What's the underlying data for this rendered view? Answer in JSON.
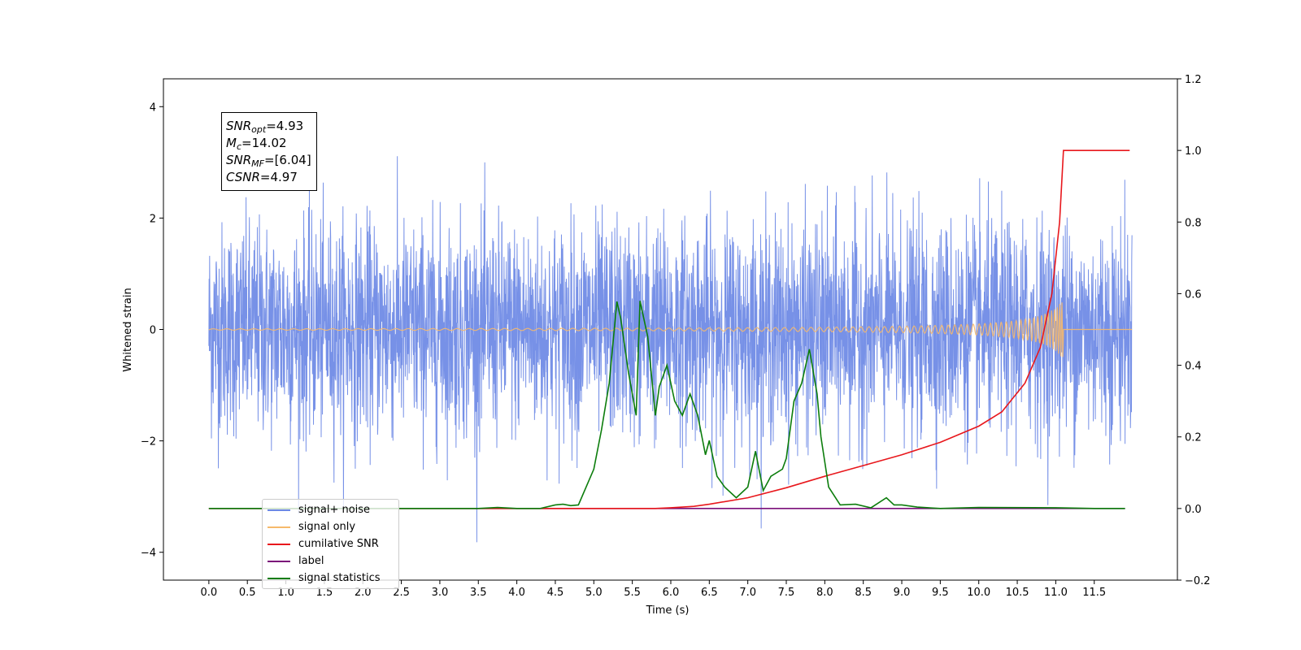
{
  "chart_data": {
    "type": "line",
    "xlabel": "Time (s)",
    "ylabel": "Whitened strain",
    "xticks": [
      "0.0",
      "0.5",
      "1.0",
      "1.5",
      "2.0",
      "2.5",
      "3.0",
      "3.5",
      "4.0",
      "4.5",
      "5.0",
      "5.5",
      "6.0",
      "6.5",
      "7.0",
      "7.5",
      "8.0",
      "8.5",
      "9.0",
      "9.5",
      "10.0",
      "10.5",
      "11.0",
      "11.5"
    ],
    "yticks_left": [
      "4",
      "2",
      "0",
      "−2",
      "−4"
    ],
    "ylim_left": [
      -4.5,
      4.5
    ],
    "yticks_right": [
      "1.2",
      "1.0",
      "0.8",
      "0.6",
      "0.4",
      "0.2",
      "0.0",
      "−0.2"
    ],
    "ylim_right": [
      -0.2,
      1.2
    ],
    "xlim": [
      -0.59,
      12.58
    ],
    "legend_position": "lower-left",
    "annotation": {
      "snr_opt": {
        "base": "SNR",
        "sub": "opt",
        "value": "=4.93"
      },
      "mc": {
        "base": "M",
        "sub": "c",
        "value": "=14.02"
      },
      "snr_mf": {
        "base": "SNR",
        "sub": "MF",
        "value": "=[6.04]"
      },
      "csnr": {
        "base": "CSNR",
        "value": "=4.97"
      }
    },
    "series": [
      {
        "name": "signal+ noise",
        "axis": "left",
        "color": "#6b88e5",
        "description": "whitened noise around 0, amplitude about ±2, peaks to about ±4, from 0 to 12 s"
      },
      {
        "name": "signal only",
        "axis": "left",
        "color": "#f6b96b",
        "description": "chirp near 0 growing to about ±1 at 11.1 s"
      },
      {
        "name": "cumilative SNR",
        "axis": "right",
        "color": "#e8171c",
        "x": [
          0.0,
          5.8,
          6.0,
          6.3,
          6.5,
          7.0,
          7.5,
          8.0,
          8.5,
          9.0,
          9.5,
          10.0,
          10.3,
          10.6,
          10.8,
          10.95,
          11.05,
          11.1,
          11.96
        ],
        "y": [
          0.0,
          0.0,
          0.002,
          0.006,
          0.012,
          0.03,
          0.058,
          0.09,
          0.12,
          0.15,
          0.185,
          0.23,
          0.27,
          0.35,
          0.45,
          0.6,
          0.8,
          1.0,
          1.0
        ]
      },
      {
        "name": "label",
        "axis": "right",
        "color": "#7b0f7a",
        "x": [
          0.0,
          11.9
        ],
        "y": [
          0.0,
          0.0
        ]
      },
      {
        "name": "signal statistics",
        "axis": "right",
        "color": "#0c7d0c",
        "x": [
          0.0,
          3.5,
          3.75,
          4.0,
          4.3,
          4.5,
          4.6,
          4.7,
          4.8,
          4.9,
          5.0,
          5.1,
          5.2,
          5.3,
          5.35,
          5.45,
          5.55,
          5.6,
          5.65,
          5.7,
          5.8,
          5.85,
          5.95,
          6.05,
          6.15,
          6.25,
          6.35,
          6.45,
          6.5,
          6.6,
          6.7,
          6.85,
          7.0,
          7.1,
          7.2,
          7.3,
          7.45,
          7.5,
          7.6,
          7.7,
          7.8,
          7.9,
          7.95,
          8.05,
          8.2,
          8.4,
          8.6,
          8.8,
          8.9,
          9.0,
          9.2,
          9.5,
          10.0,
          11.0,
          11.5,
          11.9
        ],
        "y": [
          0.0,
          0.0,
          0.003,
          0.0,
          0.0,
          0.01,
          0.012,
          0.008,
          0.01,
          0.06,
          0.11,
          0.22,
          0.35,
          0.578,
          0.53,
          0.38,
          0.26,
          0.58,
          0.53,
          0.48,
          0.26,
          0.34,
          0.4,
          0.3,
          0.26,
          0.32,
          0.26,
          0.15,
          0.19,
          0.09,
          0.06,
          0.03,
          0.06,
          0.16,
          0.05,
          0.09,
          0.11,
          0.14,
          0.3,
          0.35,
          0.445,
          0.32,
          0.2,
          0.06,
          0.01,
          0.012,
          0.002,
          0.03,
          0.01,
          0.01,
          0.004,
          0.0,
          0.003,
          0.002,
          0.0,
          0.0
        ]
      }
    ]
  }
}
